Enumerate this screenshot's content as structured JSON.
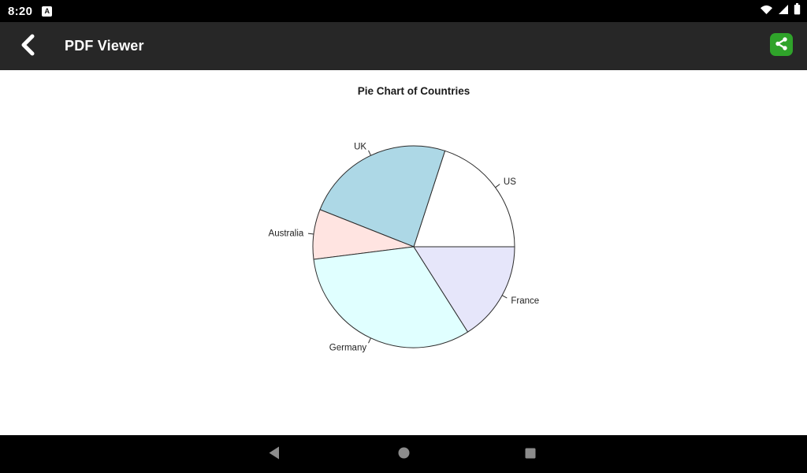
{
  "theme": {
    "status_bar_bg": "#000000",
    "app_bar_bg": "#272727",
    "content_bg": "#ffffff",
    "nav_bar_bg": "#000000",
    "nav_icon_color": "#8c8c8c",
    "share_button_bg": "#2fa32a",
    "chart_stroke": "#2b2b2b",
    "chart_label_color": "#1f1f1f"
  },
  "status_bar": {
    "time": "8:20",
    "notification_badge": "A",
    "icons": [
      "wifi-icon",
      "cell-signal-icon",
      "battery-icon"
    ]
  },
  "app_bar": {
    "title": "PDF Viewer",
    "back_icon": "back-chevron-icon",
    "share_icon": "share-icon"
  },
  "chart_data": {
    "type": "pie",
    "title": "Pie Chart of Countries",
    "start_angle_deg": 0,
    "direction": "counterclockwise",
    "labels_outside": true,
    "slices": [
      {
        "label": "US",
        "percent": 20,
        "color": "#ffffff"
      },
      {
        "label": "UK",
        "percent": 24,
        "color": "#add8e6"
      },
      {
        "label": "Australia",
        "percent": 8,
        "color": "#ffe4e1"
      },
      {
        "label": "Germany",
        "percent": 32,
        "color": "#e0ffff"
      },
      {
        "label": "France",
        "percent": 16,
        "color": "#e6e6fa"
      }
    ]
  },
  "nav_bar": {
    "icons": [
      "nav-back-icon",
      "nav-home-icon",
      "nav-recents-icon"
    ]
  }
}
